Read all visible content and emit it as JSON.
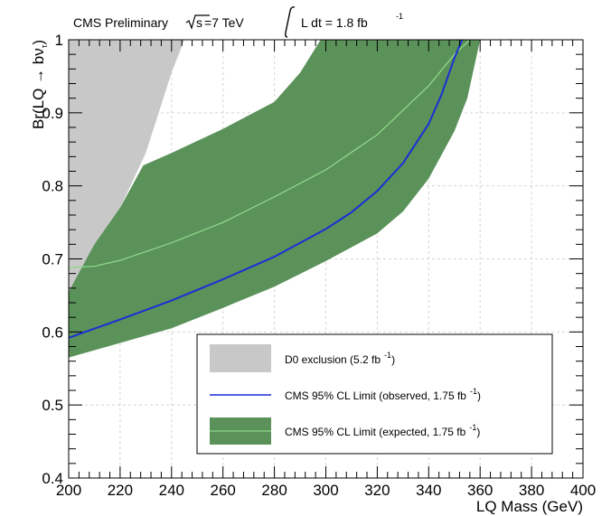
{
  "header": {
    "experiment": "CMS Preliminary",
    "energy_prefix": "s",
    "energy_value": "=7 TeV",
    "lumi_label": "L dt = 1.8 fb",
    "lumi_exp": "-1"
  },
  "chart_data": {
    "type": "area",
    "xlabel": "LQ Mass (GeV)",
    "ylabel_main": "Br(LQ → bν",
    "ylabel_sub": "τ",
    "ylabel_close": ")",
    "xlim": [
      200,
      400
    ],
    "ylim": [
      0.4,
      1.0
    ],
    "xticks": [
      200,
      220,
      240,
      260,
      280,
      300,
      320,
      340,
      360,
      380,
      400
    ],
    "yticks": [
      0.4,
      0.5,
      0.6,
      0.7,
      0.8,
      0.9,
      1
    ],
    "grid": true,
    "legend_position": "bottom-right",
    "colors": {
      "d0": "#c8c8c8",
      "band": "#5a9259",
      "expected": "#8fd68a",
      "observed": "#1b2fd6",
      "grid": "#d4d4d4"
    },
    "series": [
      {
        "kind": "excluded-region",
        "legend": "D0 exclusion (5.2 fb",
        "legend_exp": "-1",
        "legend_close": ")",
        "boundary": [
          [
            200,
            0.655
          ],
          [
            210,
            0.71
          ],
          [
            220,
            0.77
          ],
          [
            230,
            0.845
          ],
          [
            240,
            0.955
          ],
          [
            245,
            1.0
          ]
        ]
      },
      {
        "kind": "observed",
        "legend": "CMS 95% CL Limit (observed, 1.75 fb",
        "legend_exp": "-1",
        "legend_close": ")",
        "points": [
          [
            200,
            0.592
          ],
          [
            220,
            0.617
          ],
          [
            240,
            0.643
          ],
          [
            260,
            0.672
          ],
          [
            280,
            0.703
          ],
          [
            300,
            0.741
          ],
          [
            310,
            0.764
          ],
          [
            320,
            0.793
          ],
          [
            330,
            0.831
          ],
          [
            340,
            0.885
          ],
          [
            345,
            0.925
          ],
          [
            350,
            0.975
          ],
          [
            353,
            1.0
          ]
        ]
      },
      {
        "kind": "expected",
        "legend": "CMS 95% CL Limit (expected, 1.75 fb",
        "legend_exp": "-1",
        "legend_close": ")",
        "points": [
          [
            200,
            0.688
          ],
          [
            210,
            0.69
          ],
          [
            220,
            0.698
          ],
          [
            240,
            0.722
          ],
          [
            260,
            0.75
          ],
          [
            280,
            0.785
          ],
          [
            300,
            0.822
          ],
          [
            320,
            0.87
          ],
          [
            340,
            0.937
          ],
          [
            350,
            0.98
          ],
          [
            356,
            1.0
          ]
        ],
        "band_upper": [
          [
            200,
            0.655
          ],
          [
            210,
            0.72
          ],
          [
            220,
            0.77
          ],
          [
            229,
            0.828
          ],
          [
            240,
            0.845
          ],
          [
            260,
            0.878
          ],
          [
            280,
            0.915
          ],
          [
            290,
            0.955
          ],
          [
            298,
            1.0
          ]
        ],
        "band_lower": [
          [
            200,
            0.565
          ],
          [
            220,
            0.585
          ],
          [
            240,
            0.605
          ],
          [
            260,
            0.633
          ],
          [
            280,
            0.662
          ],
          [
            300,
            0.697
          ],
          [
            320,
            0.735
          ],
          [
            330,
            0.765
          ],
          [
            340,
            0.81
          ],
          [
            350,
            0.875
          ],
          [
            355,
            0.92
          ],
          [
            360,
            1.0
          ]
        ]
      }
    ]
  }
}
